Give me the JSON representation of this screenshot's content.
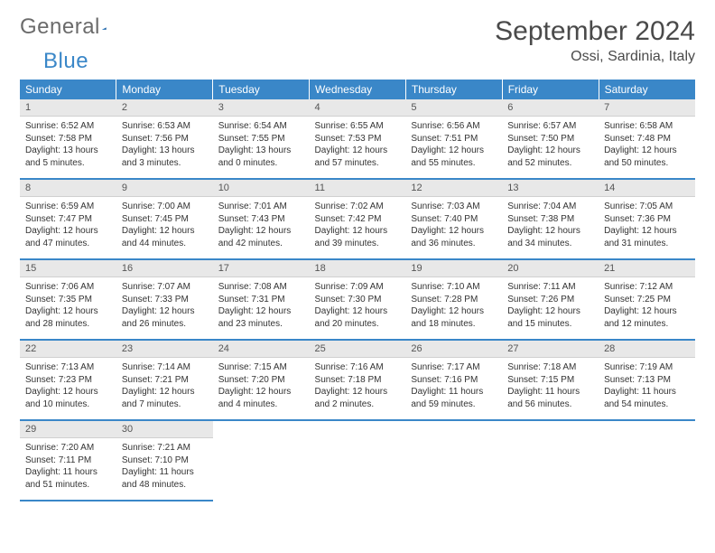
{
  "logo": {
    "text1": "General",
    "text2": "Blue"
  },
  "header": {
    "month": "September 2024",
    "location": "Ossi, Sardinia, Italy"
  },
  "columns": [
    "Sunday",
    "Monday",
    "Tuesday",
    "Wednesday",
    "Thursday",
    "Friday",
    "Saturday"
  ],
  "colors": {
    "header_bg": "#3a87c8",
    "header_text": "#ffffff",
    "daynum_bg": "#e8e8e8",
    "border": "#3a87c8",
    "page_bg": "#ffffff",
    "body_text": "#333333",
    "logo_gray": "#6b6b6b",
    "logo_blue": "#3a87c8"
  },
  "typography": {
    "month_fontsize": 30,
    "location_fontsize": 16,
    "weekday_fontsize": 12,
    "daynum_fontsize": 11,
    "cell_fontsize": 10
  },
  "weeks": [
    [
      {
        "n": "1",
        "sr": "Sunrise: 6:52 AM",
        "ss": "Sunset: 7:58 PM",
        "dl": "Daylight: 13 hours and 5 minutes."
      },
      {
        "n": "2",
        "sr": "Sunrise: 6:53 AM",
        "ss": "Sunset: 7:56 PM",
        "dl": "Daylight: 13 hours and 3 minutes."
      },
      {
        "n": "3",
        "sr": "Sunrise: 6:54 AM",
        "ss": "Sunset: 7:55 PM",
        "dl": "Daylight: 13 hours and 0 minutes."
      },
      {
        "n": "4",
        "sr": "Sunrise: 6:55 AM",
        "ss": "Sunset: 7:53 PM",
        "dl": "Daylight: 12 hours and 57 minutes."
      },
      {
        "n": "5",
        "sr": "Sunrise: 6:56 AM",
        "ss": "Sunset: 7:51 PM",
        "dl": "Daylight: 12 hours and 55 minutes."
      },
      {
        "n": "6",
        "sr": "Sunrise: 6:57 AM",
        "ss": "Sunset: 7:50 PM",
        "dl": "Daylight: 12 hours and 52 minutes."
      },
      {
        "n": "7",
        "sr": "Sunrise: 6:58 AM",
        "ss": "Sunset: 7:48 PM",
        "dl": "Daylight: 12 hours and 50 minutes."
      }
    ],
    [
      {
        "n": "8",
        "sr": "Sunrise: 6:59 AM",
        "ss": "Sunset: 7:47 PM",
        "dl": "Daylight: 12 hours and 47 minutes."
      },
      {
        "n": "9",
        "sr": "Sunrise: 7:00 AM",
        "ss": "Sunset: 7:45 PM",
        "dl": "Daylight: 12 hours and 44 minutes."
      },
      {
        "n": "10",
        "sr": "Sunrise: 7:01 AM",
        "ss": "Sunset: 7:43 PM",
        "dl": "Daylight: 12 hours and 42 minutes."
      },
      {
        "n": "11",
        "sr": "Sunrise: 7:02 AM",
        "ss": "Sunset: 7:42 PM",
        "dl": "Daylight: 12 hours and 39 minutes."
      },
      {
        "n": "12",
        "sr": "Sunrise: 7:03 AM",
        "ss": "Sunset: 7:40 PM",
        "dl": "Daylight: 12 hours and 36 minutes."
      },
      {
        "n": "13",
        "sr": "Sunrise: 7:04 AM",
        "ss": "Sunset: 7:38 PM",
        "dl": "Daylight: 12 hours and 34 minutes."
      },
      {
        "n": "14",
        "sr": "Sunrise: 7:05 AM",
        "ss": "Sunset: 7:36 PM",
        "dl": "Daylight: 12 hours and 31 minutes."
      }
    ],
    [
      {
        "n": "15",
        "sr": "Sunrise: 7:06 AM",
        "ss": "Sunset: 7:35 PM",
        "dl": "Daylight: 12 hours and 28 minutes."
      },
      {
        "n": "16",
        "sr": "Sunrise: 7:07 AM",
        "ss": "Sunset: 7:33 PM",
        "dl": "Daylight: 12 hours and 26 minutes."
      },
      {
        "n": "17",
        "sr": "Sunrise: 7:08 AM",
        "ss": "Sunset: 7:31 PM",
        "dl": "Daylight: 12 hours and 23 minutes."
      },
      {
        "n": "18",
        "sr": "Sunrise: 7:09 AM",
        "ss": "Sunset: 7:30 PM",
        "dl": "Daylight: 12 hours and 20 minutes."
      },
      {
        "n": "19",
        "sr": "Sunrise: 7:10 AM",
        "ss": "Sunset: 7:28 PM",
        "dl": "Daylight: 12 hours and 18 minutes."
      },
      {
        "n": "20",
        "sr": "Sunrise: 7:11 AM",
        "ss": "Sunset: 7:26 PM",
        "dl": "Daylight: 12 hours and 15 minutes."
      },
      {
        "n": "21",
        "sr": "Sunrise: 7:12 AM",
        "ss": "Sunset: 7:25 PM",
        "dl": "Daylight: 12 hours and 12 minutes."
      }
    ],
    [
      {
        "n": "22",
        "sr": "Sunrise: 7:13 AM",
        "ss": "Sunset: 7:23 PM",
        "dl": "Daylight: 12 hours and 10 minutes."
      },
      {
        "n": "23",
        "sr": "Sunrise: 7:14 AM",
        "ss": "Sunset: 7:21 PM",
        "dl": "Daylight: 12 hours and 7 minutes."
      },
      {
        "n": "24",
        "sr": "Sunrise: 7:15 AM",
        "ss": "Sunset: 7:20 PM",
        "dl": "Daylight: 12 hours and 4 minutes."
      },
      {
        "n": "25",
        "sr": "Sunrise: 7:16 AM",
        "ss": "Sunset: 7:18 PM",
        "dl": "Daylight: 12 hours and 2 minutes."
      },
      {
        "n": "26",
        "sr": "Sunrise: 7:17 AM",
        "ss": "Sunset: 7:16 PM",
        "dl": "Daylight: 11 hours and 59 minutes."
      },
      {
        "n": "27",
        "sr": "Sunrise: 7:18 AM",
        "ss": "Sunset: 7:15 PM",
        "dl": "Daylight: 11 hours and 56 minutes."
      },
      {
        "n": "28",
        "sr": "Sunrise: 7:19 AM",
        "ss": "Sunset: 7:13 PM",
        "dl": "Daylight: 11 hours and 54 minutes."
      }
    ],
    [
      {
        "n": "29",
        "sr": "Sunrise: 7:20 AM",
        "ss": "Sunset: 7:11 PM",
        "dl": "Daylight: 11 hours and 51 minutes."
      },
      {
        "n": "30",
        "sr": "Sunrise: 7:21 AM",
        "ss": "Sunset: 7:10 PM",
        "dl": "Daylight: 11 hours and 48 minutes."
      },
      null,
      null,
      null,
      null,
      null
    ]
  ]
}
